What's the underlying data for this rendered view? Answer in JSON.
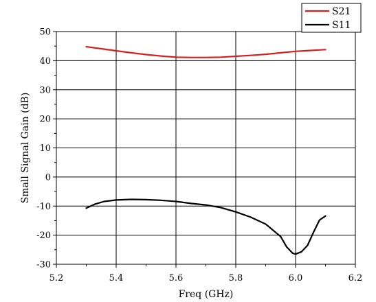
{
  "chart_data": {
    "type": "line",
    "title": "",
    "xlabel": "Freq (GHz)",
    "ylabel": "Small Signal Gain (dB)",
    "xlim": [
      5.2,
      6.2
    ],
    "ylim": [
      -30,
      50
    ],
    "xticks": [
      "5.2",
      "5.4",
      "5.6",
      "5.8",
      "6.0",
      "6.2"
    ],
    "yticks": [
      "50",
      "40",
      "30",
      "20",
      "10",
      "0",
      "-10",
      "-20",
      "-30"
    ],
    "grid": true,
    "legend_position": "top-right",
    "series": [
      {
        "name": "S21",
        "color": "#d62020",
        "x": [
          5.3,
          5.35,
          5.4,
          5.45,
          5.5,
          5.55,
          5.6,
          5.65,
          5.7,
          5.75,
          5.8,
          5.85,
          5.9,
          5.95,
          6.0,
          6.05,
          6.1
        ],
        "y": [
          44.8,
          44.1,
          43.4,
          42.7,
          42.1,
          41.6,
          41.2,
          41.1,
          41.1,
          41.2,
          41.5,
          41.8,
          42.2,
          42.7,
          43.2,
          43.5,
          43.8
        ]
      },
      {
        "name": "S11",
        "color": "#000000",
        "x": [
          5.3,
          5.33,
          5.36,
          5.4,
          5.45,
          5.5,
          5.55,
          5.6,
          5.65,
          5.7,
          5.75,
          5.8,
          5.85,
          5.9,
          5.95,
          5.97,
          5.99,
          6.0,
          6.02,
          6.04,
          6.06,
          6.08,
          6.1
        ],
        "y": [
          -10.7,
          -9.3,
          -8.4,
          -7.9,
          -7.7,
          -7.8,
          -8.0,
          -8.4,
          -9.1,
          -9.6,
          -10.5,
          -12.0,
          -13.8,
          -16.2,
          -20.5,
          -24.0,
          -26.2,
          -26.5,
          -25.7,
          -23.5,
          -19.0,
          -14.8,
          -13.4
        ]
      }
    ]
  }
}
